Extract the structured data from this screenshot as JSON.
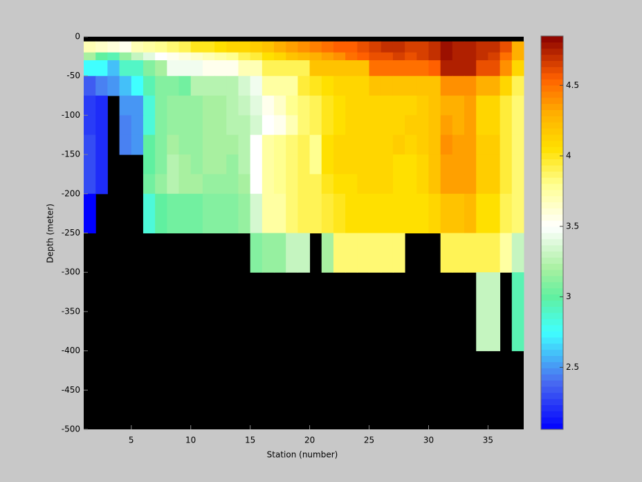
{
  "chart_data": {
    "type": "heatmap",
    "xlabel": "Station (number)",
    "ylabel": "Depth (meter)",
    "x_edges": [
      1,
      2,
      3,
      4,
      5,
      6,
      7,
      8,
      9,
      10,
      11,
      12,
      13,
      14,
      15,
      16,
      17,
      18,
      19,
      20,
      21,
      22,
      23,
      24,
      25,
      26,
      27,
      28,
      29,
      30,
      31,
      32,
      33,
      34,
      35,
      36,
      37,
      38
    ],
    "y_edges": [
      -6,
      -20,
      -30,
      -50,
      -75,
      -100,
      -125,
      -150,
      -175,
      -200,
      -250,
      -300,
      -400
    ],
    "values": [
      [
        3.7,
        3.65,
        3.6,
        3.55,
        3.7,
        3.75,
        3.8,
        3.85,
        3.9,
        4.0,
        4.0,
        4.05,
        4.1,
        4.1,
        4.15,
        4.2,
        4.3,
        4.35,
        4.4,
        4.45,
        4.5,
        4.55,
        4.55,
        4.6,
        4.65,
        4.7,
        4.7,
        4.65,
        4.65,
        4.7,
        4.8,
        4.75,
        4.75,
        4.7,
        4.7,
        4.6,
        4.3
      ],
      [
        3.2,
        3.0,
        2.95,
        3.15,
        3.3,
        3.4,
        3.5,
        3.55,
        3.6,
        3.65,
        3.7,
        3.75,
        3.8,
        3.9,
        3.95,
        4.05,
        4.1,
        4.2,
        4.25,
        4.3,
        4.35,
        4.4,
        4.5,
        4.55,
        4.6,
        4.6,
        4.65,
        4.6,
        4.65,
        4.7,
        4.8,
        4.75,
        4.75,
        4.7,
        4.65,
        4.5,
        4.3
      ],
      [
        2.75,
        2.75,
        2.6,
        2.9,
        2.9,
        3.1,
        3.2,
        3.45,
        3.45,
        3.45,
        3.55,
        3.55,
        3.55,
        3.7,
        3.7,
        3.9,
        3.9,
        3.9,
        3.9,
        4.2,
        4.2,
        4.2,
        4.2,
        4.2,
        4.5,
        4.5,
        4.5,
        4.5,
        4.5,
        4.55,
        4.75,
        4.75,
        4.75,
        4.6,
        4.6,
        4.4,
        4.1
      ],
      [
        2.35,
        2.45,
        2.5,
        2.6,
        2.75,
        2.95,
        3.1,
        3.1,
        3.05,
        3.25,
        3.25,
        3.25,
        3.25,
        3.35,
        3.45,
        3.75,
        3.75,
        3.75,
        3.95,
        4.0,
        4.05,
        4.1,
        4.1,
        4.1,
        4.2,
        4.2,
        4.2,
        4.2,
        4.2,
        4.2,
        4.4,
        4.4,
        4.4,
        4.3,
        4.3,
        4.1,
        3.9
      ],
      [
        2.25,
        2.2,
        null,
        2.5,
        2.5,
        2.85,
        3.1,
        3.15,
        3.15,
        3.15,
        3.2,
        3.2,
        3.25,
        3.3,
        3.4,
        3.55,
        3.65,
        3.8,
        3.85,
        3.9,
        4.0,
        4.05,
        4.1,
        4.1,
        4.1,
        4.1,
        4.1,
        4.1,
        4.15,
        4.2,
        4.3,
        4.3,
        4.35,
        4.1,
        4.1,
        3.95,
        3.85
      ],
      [
        2.25,
        2.2,
        null,
        2.45,
        2.5,
        2.85,
        3.1,
        3.15,
        3.15,
        3.15,
        3.2,
        3.2,
        3.25,
        3.25,
        3.35,
        3.5,
        3.55,
        3.7,
        3.85,
        3.9,
        4.0,
        4.05,
        4.1,
        4.1,
        4.1,
        4.1,
        4.1,
        4.15,
        4.15,
        4.2,
        4.35,
        4.3,
        4.35,
        4.1,
        4.1,
        3.95,
        3.85
      ],
      [
        2.3,
        2.2,
        null,
        2.45,
        2.5,
        3.0,
        3.1,
        3.2,
        3.15,
        3.15,
        3.2,
        3.2,
        3.2,
        3.25,
        3.5,
        3.75,
        3.8,
        3.85,
        3.9,
        3.8,
        4.05,
        4.1,
        4.1,
        4.1,
        4.1,
        4.1,
        4.15,
        4.1,
        4.15,
        4.2,
        4.4,
        4.35,
        4.35,
        4.15,
        4.15,
        3.95,
        3.85
      ],
      [
        2.3,
        2.2,
        null,
        null,
        null,
        3.0,
        3.1,
        3.25,
        3.2,
        3.15,
        3.2,
        3.2,
        3.15,
        3.25,
        3.5,
        3.75,
        3.8,
        3.85,
        3.9,
        3.8,
        4.05,
        4.1,
        4.1,
        4.1,
        4.1,
        4.1,
        4.05,
        4.05,
        4.1,
        4.2,
        4.35,
        4.35,
        4.35,
        4.15,
        4.15,
        3.95,
        3.85
      ],
      [
        2.3,
        2.2,
        null,
        null,
        null,
        3.05,
        3.15,
        3.25,
        3.2,
        3.2,
        3.15,
        3.15,
        3.15,
        3.2,
        3.5,
        3.75,
        3.8,
        3.85,
        3.9,
        3.9,
        4.0,
        4.05,
        4.05,
        4.1,
        4.1,
        4.1,
        4.05,
        4.05,
        4.1,
        4.2,
        4.35,
        4.35,
        4.35,
        4.15,
        4.15,
        3.95,
        3.85
      ],
      [
        2.06,
        null,
        null,
        null,
        null,
        2.85,
        3.0,
        3.05,
        3.05,
        3.05,
        3.1,
        3.1,
        3.1,
        3.15,
        3.35,
        3.75,
        3.75,
        3.85,
        3.9,
        3.9,
        3.95,
        4.0,
        4.05,
        4.05,
        4.05,
        4.05,
        4.05,
        4.05,
        4.05,
        4.1,
        4.2,
        4.2,
        4.25,
        4.05,
        4.05,
        3.9,
        3.85
      ],
      [
        null,
        null,
        null,
        null,
        null,
        null,
        null,
        null,
        null,
        null,
        null,
        null,
        null,
        null,
        3.1,
        3.15,
        3.15,
        3.3,
        3.3,
        null,
        3.2,
        3.85,
        3.85,
        3.85,
        3.85,
        3.85,
        3.85,
        null,
        null,
        null,
        3.9,
        3.9,
        3.9,
        3.9,
        3.9,
        3.75,
        3.3
      ],
      [
        null,
        null,
        null,
        null,
        null,
        null,
        null,
        null,
        null,
        null,
        null,
        null,
        null,
        null,
        null,
        null,
        null,
        null,
        null,
        null,
        null,
        null,
        null,
        null,
        null,
        null,
        null,
        null,
        null,
        null,
        null,
        null,
        null,
        3.3,
        3.3,
        null,
        2.95
      ]
    ],
    "xlim": [
      1,
      38
    ],
    "ylim": [
      -500,
      0
    ],
    "xticks": [
      5,
      10,
      15,
      20,
      25,
      30,
      35
    ],
    "yticks": [
      0,
      -50,
      -100,
      -150,
      -200,
      -250,
      -300,
      -350,
      -400,
      -450,
      -500
    ],
    "clim": [
      2.06,
      4.85
    ],
    "cticks": [
      2.5,
      3,
      3.5,
      4,
      4.5
    ],
    "colormap": [
      {
        "value": 2.06,
        "color": "#0000ff"
      },
      {
        "value": 2.4,
        "color": "#4a6cf0"
      },
      {
        "value": 2.75,
        "color": "#40ffff"
      },
      {
        "value": 3.0,
        "color": "#60f0a0"
      },
      {
        "value": 3.2,
        "color": "#a8f0a0"
      },
      {
        "value": 3.5,
        "color": "#ffffff"
      },
      {
        "value": 3.8,
        "color": "#ffff90"
      },
      {
        "value": 4.05,
        "color": "#ffe000"
      },
      {
        "value": 4.3,
        "color": "#ffb000"
      },
      {
        "value": 4.55,
        "color": "#ff6000"
      },
      {
        "value": 4.85,
        "color": "#880000"
      }
    ],
    "missing_color": "#000000"
  }
}
